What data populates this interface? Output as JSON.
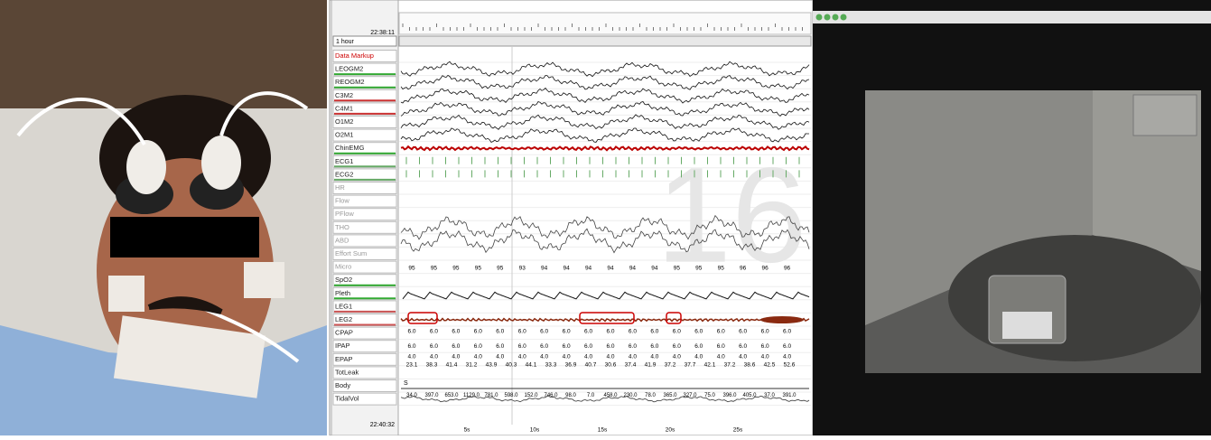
{
  "psg": {
    "start_time": "22:38:11",
    "window": "1 hour",
    "end_time": "22:40:32",
    "epoch": "16",
    "channels": [
      "Data Markup",
      "LEOGM2",
      "REOGM2",
      "C3M2",
      "C4M1",
      "O1M2",
      "O2M1",
      "ChinEMG",
      "ECG1",
      "ECG2",
      "HR",
      "Flow",
      "PFlow",
      "THO",
      "ABD",
      "Effort Sum",
      "Micro",
      "SpO2",
      "Pleth",
      "LEG1",
      "LEG2",
      "CPAP",
      "IPAP",
      "EPAP",
      "TotLeak",
      "Body",
      "TidalVol"
    ],
    "spo2": [
      "95",
      "95",
      "95",
      "95",
      "95",
      "93",
      "94",
      "94",
      "94",
      "94",
      "94",
      "94",
      "95",
      "95",
      "95",
      "96",
      "96",
      "96"
    ],
    "cpap": [
      "6.0",
      "6.0",
      "6.0",
      "6.0",
      "6.0",
      "6.0",
      "6.0",
      "6.0",
      "6.0",
      "6.0",
      "6.0",
      "6.0",
      "6.0",
      "6.0",
      "6.0",
      "6.0",
      "6.0",
      "6.0"
    ],
    "ipap": [
      "6.0",
      "6.0",
      "6.0",
      "6.0",
      "6.0",
      "6.0",
      "6.0",
      "6.0",
      "6.0",
      "6.0",
      "6.0",
      "6.0",
      "6.0",
      "6.0",
      "6.0",
      "6.0",
      "6.0",
      "6.0"
    ],
    "epap": [
      "4.0",
      "4.0",
      "4.0",
      "4.0",
      "4.0",
      "4.0",
      "4.0",
      "4.0",
      "4.0",
      "4.0",
      "4.0",
      "4.0",
      "4.0",
      "4.0",
      "4.0",
      "4.0",
      "4.0",
      "4.0"
    ],
    "totleak": [
      "23.1",
      "38.3",
      "41.4",
      "31.2",
      "43.9",
      "40.3",
      "44.1",
      "33.3",
      "36.9",
      "40.7",
      "30.6",
      "37.4",
      "41.9",
      "37.2",
      "37.7",
      "42.1",
      "37.2",
      "38.6",
      "42.5",
      "52.6"
    ],
    "body": "S",
    "tidalvol": [
      "34.0",
      "397.0",
      "653.0",
      "1129.0",
      "781.0",
      "598.0",
      "152.0",
      "746.0",
      "98.0",
      "7.0",
      "458.0",
      "230.0",
      "78.0",
      "365.0",
      "327.0",
      "75.0",
      "396.0",
      "405.0",
      "37.0",
      "391.0"
    ],
    "time_axis": [
      "5s",
      "10s",
      "15s",
      "20s",
      "25s"
    ]
  }
}
